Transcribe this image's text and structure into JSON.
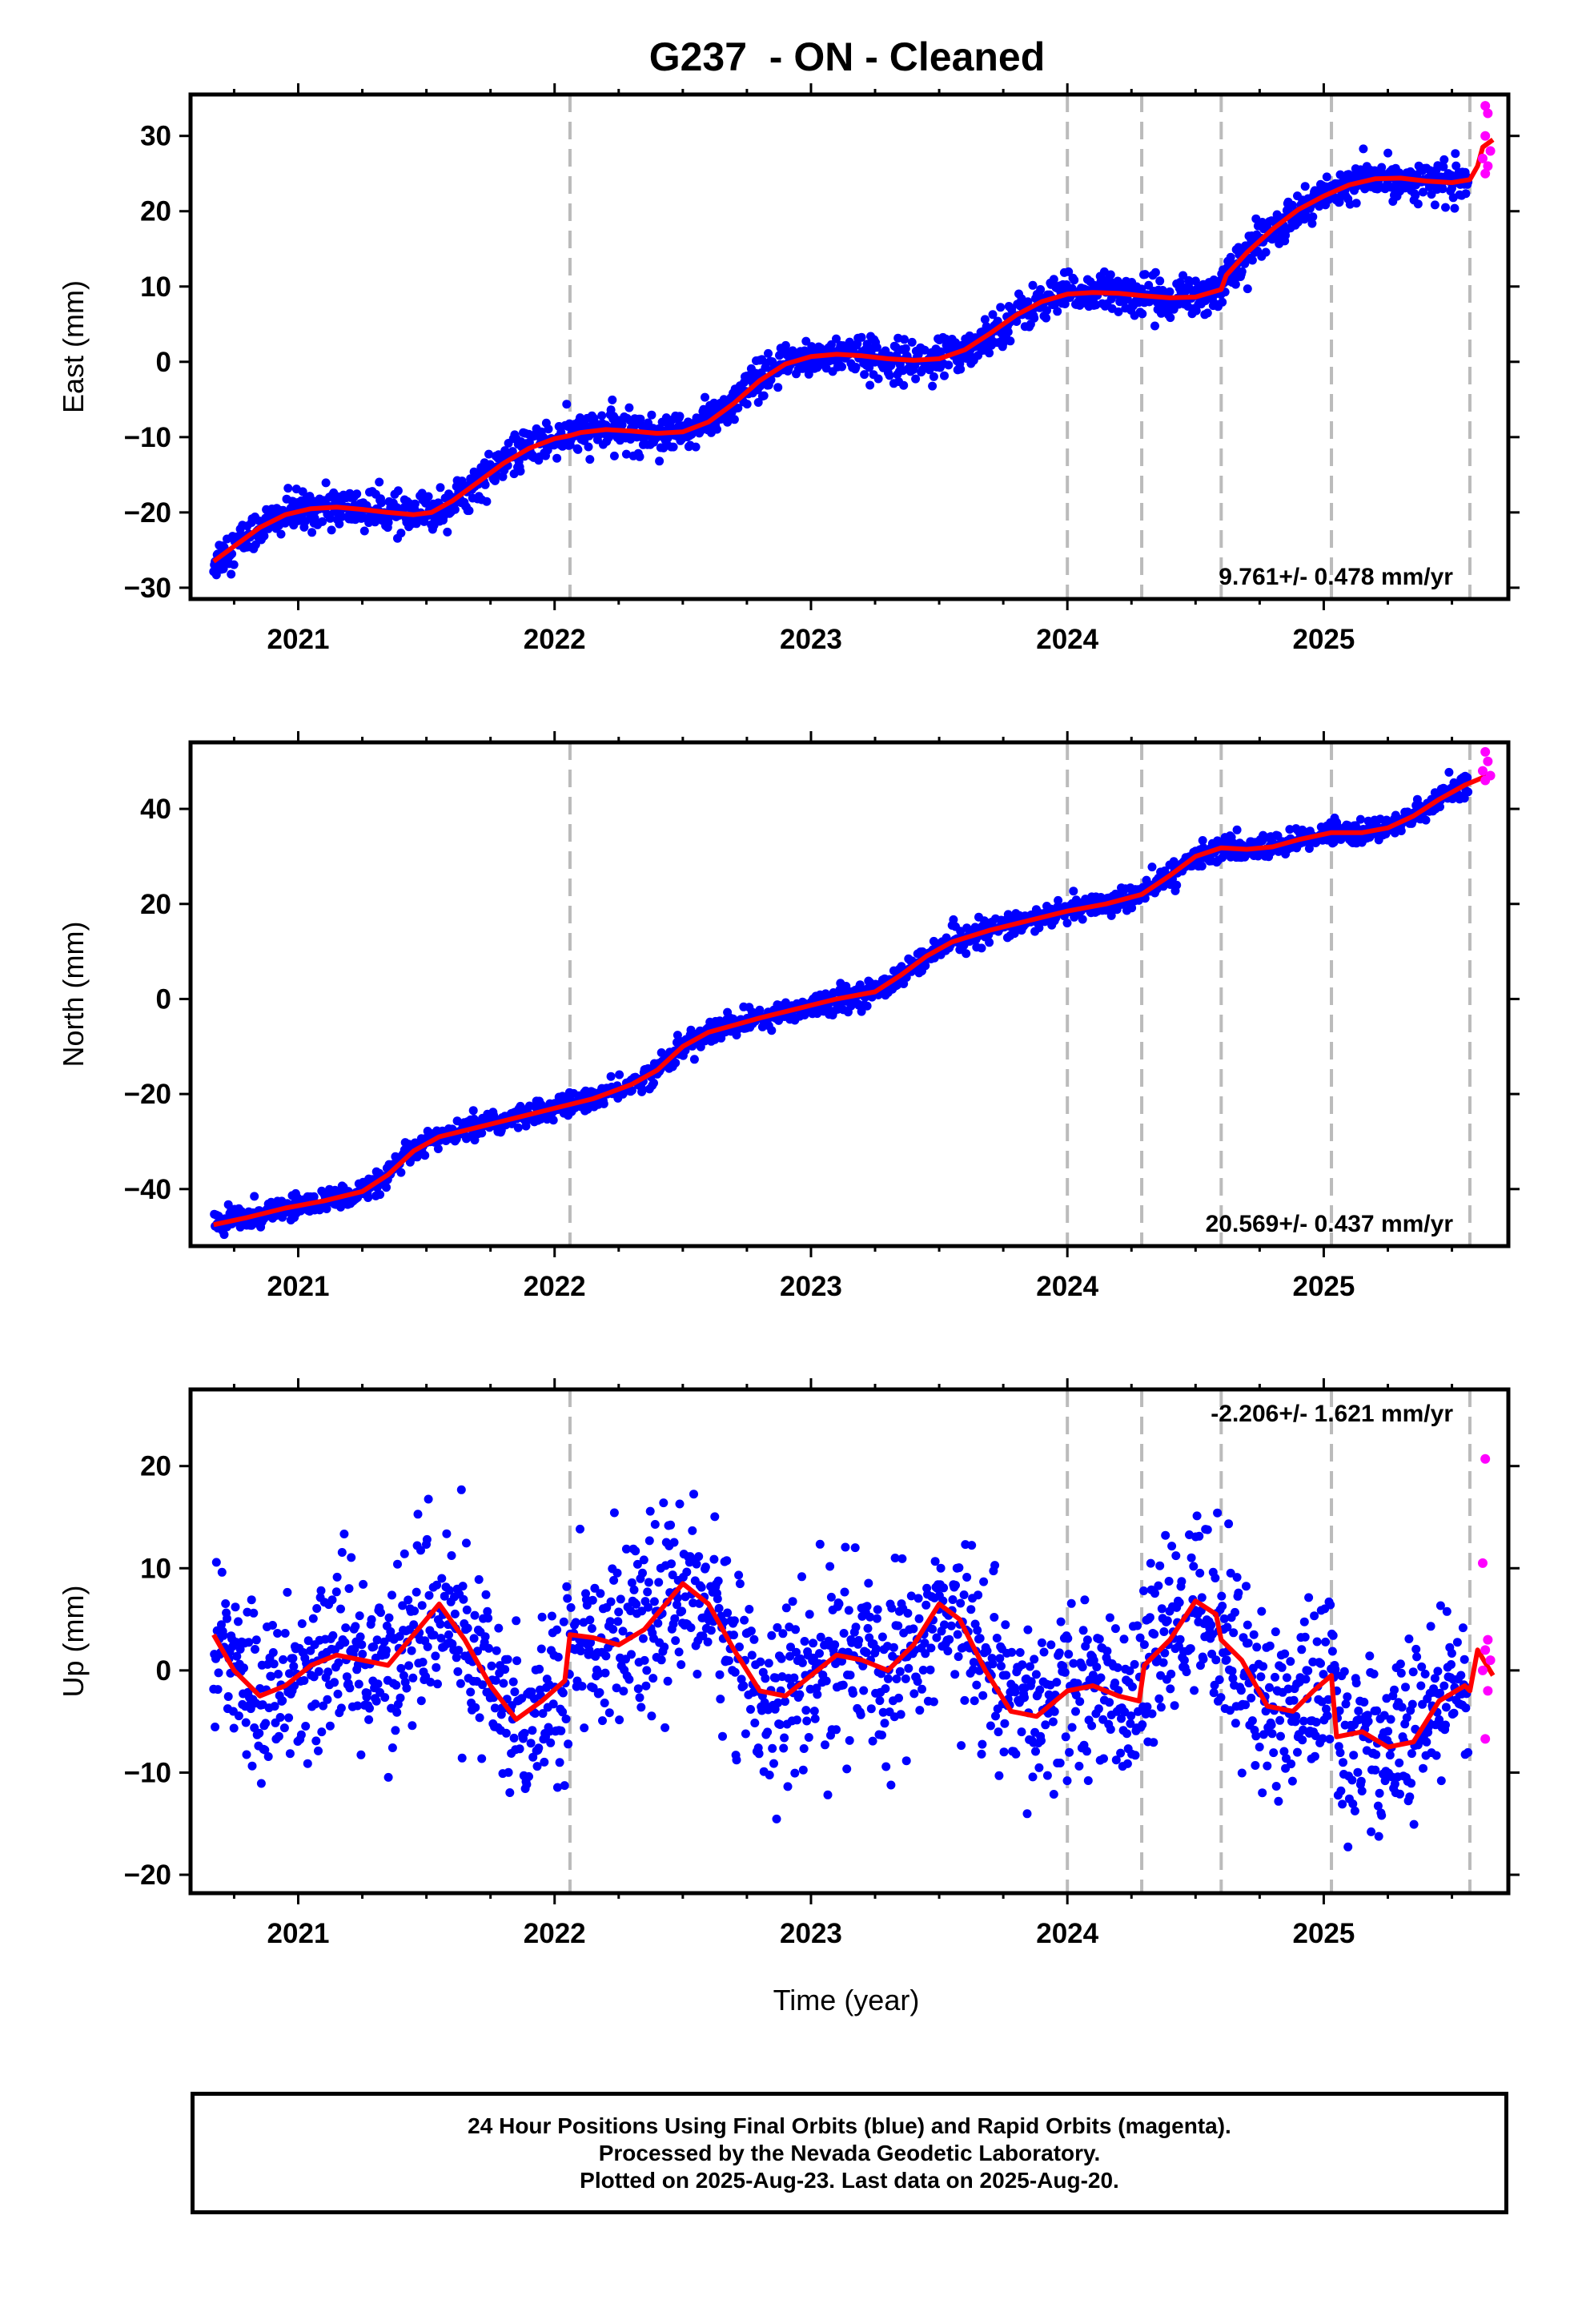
{
  "title": "G237  - ON - Cleaned",
  "xlabel": "Time (year)",
  "caption": [
    "24 Hour Positions Using Final Orbits (blue) and Rapid Orbits (magenta).",
    "Processed by the Nevada Geodetic Laboratory.",
    "Plotted on 2025-Aug-23. Last data on 2025-Aug-20."
  ],
  "colors": {
    "final": "#0000ff",
    "rapid": "#ff00ff",
    "model": "#ff0000",
    "event_line": "#bbbbbb"
  },
  "chart_data": [
    {
      "type": "scatter",
      "name": "east",
      "ylabel": "East (mm)",
      "rate_text": "9.761+/- 0.478 mm/yr",
      "xlim": [
        2020.58,
        2025.72
      ],
      "ylim": [
        -31.5,
        35.5
      ],
      "xticks": [
        2021,
        2022,
        2023,
        2024,
        2025
      ],
      "yticks": [
        -30,
        -20,
        -10,
        0,
        10,
        20,
        30
      ],
      "events": [
        2022.06,
        2024.0,
        2024.29,
        2024.6,
        2025.03,
        2025.57
      ],
      "model": [
        [
          2020.67,
          -26.5
        ],
        [
          2020.75,
          -24.5
        ],
        [
          2020.85,
          -22
        ],
        [
          2020.95,
          -20.3
        ],
        [
          2021.05,
          -19.5
        ],
        [
          2021.15,
          -19.3
        ],
        [
          2021.25,
          -19.6
        ],
        [
          2021.35,
          -20
        ],
        [
          2021.45,
          -20.3
        ],
        [
          2021.52,
          -20
        ],
        [
          2021.6,
          -18.5
        ],
        [
          2021.7,
          -16
        ],
        [
          2021.8,
          -13.5
        ],
        [
          2021.9,
          -11.5
        ],
        [
          2022.0,
          -10.2
        ],
        [
          2022.06,
          -9.8
        ],
        [
          2022.1,
          -9.4
        ],
        [
          2022.2,
          -9
        ],
        [
          2022.3,
          -9.2
        ],
        [
          2022.4,
          -9.5
        ],
        [
          2022.5,
          -9.3
        ],
        [
          2022.6,
          -8
        ],
        [
          2022.7,
          -5.5
        ],
        [
          2022.8,
          -2.5
        ],
        [
          2022.9,
          -0.3
        ],
        [
          2023.0,
          0.7
        ],
        [
          2023.1,
          1
        ],
        [
          2023.2,
          0.8
        ],
        [
          2023.3,
          0.4
        ],
        [
          2023.4,
          0.2
        ],
        [
          2023.5,
          0.4
        ],
        [
          2023.6,
          1.6
        ],
        [
          2023.7,
          3.8
        ],
        [
          2023.8,
          6.2
        ],
        [
          2023.9,
          8
        ],
        [
          2024.0,
          9
        ],
        [
          2024.1,
          9.2
        ],
        [
          2024.2,
          9.1
        ],
        [
          2024.29,
          8.8
        ],
        [
          2024.4,
          8.5
        ],
        [
          2024.5,
          8.6
        ],
        [
          2024.6,
          9.6
        ],
        [
          2024.62,
          11.5
        ],
        [
          2024.7,
          14.5
        ],
        [
          2024.8,
          17.6
        ],
        [
          2024.9,
          20.2
        ],
        [
          2025.0,
          22
        ],
        [
          2025.1,
          23.5
        ],
        [
          2025.2,
          24.3
        ],
        [
          2025.3,
          24.4
        ],
        [
          2025.4,
          24
        ],
        [
          2025.5,
          23.8
        ],
        [
          2025.57,
          24.2
        ],
        [
          2025.6,
          26
        ],
        [
          2025.62,
          28.5
        ],
        [
          2025.66,
          29.5
        ]
      ],
      "scatter_sd": 1.3,
      "rapid_points": [
        [
          2025.63,
          34
        ],
        [
          2025.64,
          33
        ],
        [
          2025.63,
          30
        ],
        [
          2025.65,
          28
        ],
        [
          2025.62,
          27
        ],
        [
          2025.64,
          26
        ],
        [
          2025.63,
          25
        ]
      ]
    },
    {
      "type": "scatter",
      "name": "north",
      "ylabel": "North (mm)",
      "rate_text": "20.569+/- 0.437 mm/yr",
      "xlim": [
        2020.58,
        2025.72
      ],
      "ylim": [
        -52,
        54
      ],
      "xticks": [
        2021,
        2022,
        2023,
        2024,
        2025
      ],
      "yticks": [
        -40,
        -20,
        0,
        20,
        40
      ],
      "events": [
        2022.06,
        2024.0,
        2024.29,
        2024.6,
        2025.03,
        2025.57
      ],
      "model": [
        [
          2020.67,
          -47.5
        ],
        [
          2020.8,
          -46
        ],
        [
          2020.95,
          -44
        ],
        [
          2021.1,
          -42.5
        ],
        [
          2021.25,
          -40.5
        ],
        [
          2021.35,
          -37
        ],
        [
          2021.45,
          -32
        ],
        [
          2021.55,
          -29
        ],
        [
          2021.7,
          -27
        ],
        [
          2021.85,
          -25
        ],
        [
          2022.0,
          -23
        ],
        [
          2022.15,
          -21
        ],
        [
          2022.3,
          -18
        ],
        [
          2022.4,
          -15
        ],
        [
          2022.5,
          -10
        ],
        [
          2022.6,
          -7
        ],
        [
          2022.7,
          -5.5
        ],
        [
          2022.8,
          -4
        ],
        [
          2022.95,
          -2
        ],
        [
          2023.1,
          0
        ],
        [
          2023.25,
          1.5
        ],
        [
          2023.35,
          5
        ],
        [
          2023.45,
          9
        ],
        [
          2023.55,
          12
        ],
        [
          2023.7,
          14.5
        ],
        [
          2023.85,
          16.5
        ],
        [
          2024.0,
          18.5
        ],
        [
          2024.15,
          20
        ],
        [
          2024.29,
          22
        ],
        [
          2024.4,
          26
        ],
        [
          2024.5,
          30
        ],
        [
          2024.6,
          31.8
        ],
        [
          2024.7,
          31.5
        ],
        [
          2024.8,
          32
        ],
        [
          2024.9,
          33.5
        ],
        [
          2025.03,
          35
        ],
        [
          2025.15,
          35
        ],
        [
          2025.25,
          36
        ],
        [
          2025.35,
          38.5
        ],
        [
          2025.45,
          42
        ],
        [
          2025.55,
          45
        ],
        [
          2025.66,
          47.5
        ]
      ],
      "scatter_sd": 1.2,
      "rapid_points": [
        [
          2025.63,
          52
        ],
        [
          2025.64,
          50
        ],
        [
          2025.62,
          48
        ],
        [
          2025.65,
          47
        ],
        [
          2025.63,
          46
        ]
      ]
    },
    {
      "type": "scatter",
      "name": "up",
      "ylabel": "Up (mm)",
      "rate_text": "-2.206+/- 1.621 mm/yr",
      "xlim": [
        2020.58,
        2025.72
      ],
      "ylim": [
        -21.8,
        27.5
      ],
      "xticks": [
        2021,
        2022,
        2023,
        2024,
        2025
      ],
      "yticks": [
        -20,
        -10,
        0,
        10,
        20
      ],
      "events": [
        2022.06,
        2024.0,
        2024.29,
        2024.6,
        2025.03,
        2025.57
      ],
      "model": [
        [
          2020.67,
          3.5
        ],
        [
          2020.75,
          0
        ],
        [
          2020.85,
          -2.5
        ],
        [
          2020.95,
          -1.5
        ],
        [
          2021.05,
          0.5
        ],
        [
          2021.15,
          1.5
        ],
        [
          2021.25,
          1
        ],
        [
          2021.35,
          0.5
        ],
        [
          2021.45,
          3.5
        ],
        [
          2021.55,
          6.5
        ],
        [
          2021.65,
          3
        ],
        [
          2021.75,
          -1.5
        ],
        [
          2021.85,
          -4.8
        ],
        [
          2021.95,
          -3
        ],
        [
          2022.04,
          -1
        ],
        [
          2022.06,
          3.5
        ],
        [
          2022.15,
          3.2
        ],
        [
          2022.25,
          2.5
        ],
        [
          2022.35,
          4
        ],
        [
          2022.5,
          8.5
        ],
        [
          2022.6,
          6.5
        ],
        [
          2022.7,
          2
        ],
        [
          2022.8,
          -2
        ],
        [
          2022.9,
          -2.5
        ],
        [
          2023.0,
          -0.5
        ],
        [
          2023.1,
          1.5
        ],
        [
          2023.2,
          1
        ],
        [
          2023.3,
          0
        ],
        [
          2023.4,
          2.5
        ],
        [
          2023.5,
          6.5
        ],
        [
          2023.58,
          5
        ],
        [
          2023.68,
          0
        ],
        [
          2023.78,
          -4
        ],
        [
          2023.88,
          -4.5
        ],
        [
          2024.0,
          -2
        ],
        [
          2024.1,
          -1.5
        ],
        [
          2024.2,
          -2.5
        ],
        [
          2024.28,
          -3
        ],
        [
          2024.3,
          0.5
        ],
        [
          2024.4,
          3
        ],
        [
          2024.5,
          6.8
        ],
        [
          2024.58,
          5.5
        ],
        [
          2024.6,
          3
        ],
        [
          2024.68,
          1
        ],
        [
          2024.78,
          -3.5
        ],
        [
          2024.88,
          -4
        ],
        [
          2024.96,
          -2
        ],
        [
          2025.03,
          -0.5
        ],
        [
          2025.05,
          -6.5
        ],
        [
          2025.15,
          -6
        ],
        [
          2025.25,
          -7.5
        ],
        [
          2025.35,
          -7
        ],
        [
          2025.45,
          -3
        ],
        [
          2025.55,
          -1.5
        ],
        [
          2025.57,
          -2
        ],
        [
          2025.6,
          2
        ],
        [
          2025.66,
          -0.5
        ]
      ],
      "scatter_sd": 4.3,
      "rapid_points": [
        [
          2025.63,
          20.7
        ],
        [
          2025.62,
          10.5
        ],
        [
          2025.64,
          3
        ],
        [
          2025.63,
          2
        ],
        [
          2025.65,
          1
        ],
        [
          2025.62,
          0
        ],
        [
          2025.64,
          -2
        ],
        [
          2025.63,
          -6.7
        ]
      ]
    }
  ]
}
